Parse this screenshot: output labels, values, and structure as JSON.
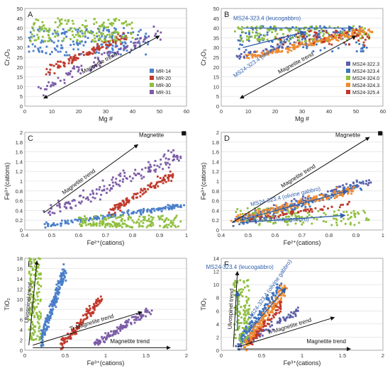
{
  "figure": {
    "background": "#ffffff"
  },
  "colors": {
    "MR-14": "#4a7ec9",
    "MR-20": "#c0392b",
    "MR-30": "#8fbf3f",
    "MR-31": "#7b5aa6",
    "MS24-322.3": "#5b5fa8",
    "MS24-323.4": "#3f74bf",
    "MS24-324.0": "#8fbf3f",
    "MS24-324.3": "#f08a2e",
    "MS24-325.4": "#c0392b",
    "annotation_blue": "#2f5faa",
    "arrow": "#111111"
  },
  "chart_data": [
    {
      "id": "A",
      "type": "scatter",
      "panel_label": "A",
      "xlabel": "Mg #",
      "ylabel": "Cr₂O₃",
      "xlim": [
        0,
        60
      ],
      "ylim": [
        0,
        50
      ],
      "xticks": [
        0,
        10,
        20,
        30,
        40,
        50,
        60
      ],
      "yticks": [
        0,
        5,
        10,
        15,
        20,
        25,
        30,
        35,
        40,
        45,
        50
      ],
      "legend": {
        "placement": "bottom-right",
        "entries": [
          "MR-14",
          "MR-20",
          "MR-30",
          "MR-31"
        ]
      },
      "series": [
        {
          "name": "MR-14",
          "clusters": [
            {
              "n": 190,
              "x": [
                1,
                46
              ],
              "y": [
                26,
                40
              ],
              "shape": "band"
            }
          ]
        },
        {
          "name": "MR-20",
          "clusters": [
            {
              "n": 110,
              "x": [
                8,
                38
              ],
              "y": [
                18,
                36
              ],
              "shape": "diag"
            }
          ]
        },
        {
          "name": "MR-30",
          "clusters": [
            {
              "n": 170,
              "x": [
                2,
                40
              ],
              "y": [
                33,
                45
              ],
              "shape": "band"
            }
          ]
        },
        {
          "name": "MR-31",
          "clusters": [
            {
              "n": 90,
              "x": [
                5,
                50
              ],
              "y": [
                9,
                38
              ],
              "shape": "diag"
            }
          ]
        }
      ],
      "annotations": [
        {
          "text": "Magnetite trend",
          "x": [
            7,
            50
          ],
          "y": [
            4,
            36
          ],
          "type": "arrow-both",
          "label_at": 0.5
        }
      ]
    },
    {
      "id": "B",
      "type": "scatter",
      "panel_label": "B",
      "xlabel": "Mg #",
      "ylabel": "Cr₂O₃",
      "xlim": [
        0,
        60
      ],
      "ylim": [
        0,
        50
      ],
      "xticks": [
        0,
        10,
        20,
        30,
        40,
        50,
        60
      ],
      "yticks": [
        0,
        5,
        10,
        15,
        20,
        25,
        30,
        35,
        40,
        45,
        50
      ],
      "legend": {
        "placement": "bottom-right",
        "entries": [
          "MS24-322.3",
          "MS24-323.4",
          "MS24-324.0",
          "MS24-324.3",
          "MS24-325.4"
        ]
      },
      "series": [
        {
          "name": "MS24-322.3",
          "clusters": [
            {
              "n": 80,
              "x": [
                5,
                52
              ],
              "y": [
                25,
                40
              ],
              "shape": "diag"
            }
          ]
        },
        {
          "name": "MS24-323.4",
          "clusters": [
            {
              "n": 120,
              "x": [
                6,
                54
              ],
              "y": [
                28,
                41
              ],
              "shape": "band"
            }
          ]
        },
        {
          "name": "MS24-324.0",
          "clusters": [
            {
              "n": 150,
              "x": [
                5,
                56
              ],
              "y": [
                33,
                41
              ],
              "shape": "band"
            }
          ]
        },
        {
          "name": "MS24-324.3",
          "clusters": [
            {
              "n": 180,
              "x": [
                10,
                55
              ],
              "y": [
                25,
                39
              ],
              "shape": "diag"
            }
          ]
        },
        {
          "name": "MS24-325.4",
          "clusters": [
            {
              "n": 60,
              "x": [
                20,
                55
              ],
              "y": [
                31,
                39
              ],
              "shape": "band"
            }
          ]
        }
      ],
      "annotations": [
        {
          "text": "Magnetite trend",
          "x": [
            7,
            50
          ],
          "y": [
            4,
            36
          ],
          "type": "arrow-both",
          "label_at": 0.5
        },
        {
          "text": "MS24-323.4 (leucogabbro)",
          "x": [
            8,
            49
          ],
          "y": [
            40,
            40
          ],
          "type": "arrow-blue",
          "label_at": 0.5,
          "label_pos": [
            17,
            44
          ]
        },
        {
          "text": "MS24-323.4 (olivine gabbro)",
          "x": [
            8,
            31
          ],
          "y": [
            30,
            38
          ],
          "type": "arrow-blue",
          "label_at": 0.3,
          "label_pos": [
            16,
            25
          ],
          "rotate": -35
        }
      ]
    },
    {
      "id": "C",
      "type": "scatter",
      "panel_label": "C",
      "xlabel": "Fe²⁺(cations)",
      "ylabel": "Fe³⁺(cations)",
      "xlim": [
        0.4,
        1.0
      ],
      "ylim": [
        0,
        2
      ],
      "xticks": [
        0.4,
        0.5,
        0.6,
        0.7,
        0.8,
        0.9,
        1.0
      ],
      "yticks": [
        0,
        0.2,
        0.4,
        0.6,
        0.8,
        1.0,
        1.2,
        1.4,
        1.6,
        1.8,
        2.0
      ],
      "xticklabels": [
        "0.4",
        "0.5",
        "0.6",
        "0.7",
        "0.8",
        "0.9",
        "1"
      ],
      "yticklabels": [
        "0",
        "0.2",
        "0.4",
        "0.6",
        "0.8",
        "1",
        "1.2",
        "1.4",
        "1.6",
        "1.8",
        "2"
      ],
      "series": [
        {
          "name": "MR-14",
          "clusters": [
            {
              "n": 170,
              "x": [
                0.48,
                0.98
              ],
              "y": [
                0.1,
                0.5
              ],
              "shape": "diag"
            }
          ]
        },
        {
          "name": "MR-20",
          "clusters": [
            {
              "n": 110,
              "x": [
                0.72,
                0.95
              ],
              "y": [
                0.4,
                1.15
              ],
              "shape": "diag"
            }
          ]
        },
        {
          "name": "MR-30",
          "clusters": [
            {
              "n": 180,
              "x": [
                0.6,
                0.98
              ],
              "y": [
                0.05,
                0.3
              ],
              "shape": "band"
            }
          ]
        },
        {
          "name": "MR-31",
          "clusters": [
            {
              "n": 150,
              "x": [
                0.48,
                0.98
              ],
              "y": [
                0.3,
                1.55
              ],
              "shape": "diag"
            }
          ]
        }
      ],
      "annotations": [
        {
          "text": "Magnetite trend",
          "x": [
            0.47,
            0.82
          ],
          "y": [
            0.35,
            1.75
          ],
          "type": "arrow-end",
          "label_at": 0.4
        },
        {
          "text": "Magnetite",
          "x": [
            0.99,
            0.99
          ],
          "y": [
            1.98,
            1.98
          ],
          "type": "marker",
          "label_pos": [
            0.87,
            1.95
          ]
        }
      ]
    },
    {
      "id": "D",
      "type": "scatter",
      "panel_label": "D",
      "xlabel": "Fe²⁺(cations)",
      "ylabel": "Fe³⁺(cations)",
      "xlim": [
        0.4,
        1.0
      ],
      "ylim": [
        0,
        2
      ],
      "xticks": [
        0.4,
        0.5,
        0.6,
        0.7,
        0.8,
        0.9,
        1.0
      ],
      "yticks": [
        0,
        0.2,
        0.4,
        0.6,
        0.8,
        1.0,
        1.2,
        1.4,
        1.6,
        1.8,
        2.0
      ],
      "xticklabels": [
        "0.4",
        "0.5",
        "0.6",
        "0.7",
        "0.8",
        "0.9",
        "1"
      ],
      "yticklabels": [
        "0",
        "0.2",
        "0.4",
        "0.6",
        "0.8",
        "1",
        "1.2",
        "1.4",
        "1.6",
        "1.8",
        "2"
      ],
      "series": [
        {
          "name": "MS24-322.3",
          "clusters": [
            {
              "n": 120,
              "x": [
                0.45,
                0.95
              ],
              "y": [
                0.15,
                1.0
              ],
              "shape": "diag"
            }
          ]
        },
        {
          "name": "MS24-323.4",
          "clusters": [
            {
              "n": 140,
              "x": [
                0.45,
                0.92
              ],
              "y": [
                0.15,
                0.9
              ],
              "shape": "diag"
            }
          ]
        },
        {
          "name": "MS24-324.0",
          "clusters": [
            {
              "n": 140,
              "x": [
                0.45,
                0.95
              ],
              "y": [
                0.1,
                0.45
              ],
              "shape": "band"
            }
          ]
        },
        {
          "name": "MS24-324.3",
          "clusters": [
            {
              "n": 150,
              "x": [
                0.45,
                0.9
              ],
              "y": [
                0.2,
                0.85
              ],
              "shape": "diag"
            }
          ]
        },
        {
          "name": "MS24-325.4",
          "clusters": [
            {
              "n": 60,
              "x": [
                0.5,
                0.9
              ],
              "y": [
                0.2,
                0.55
              ],
              "shape": "diag"
            }
          ]
        }
      ],
      "annotations": [
        {
          "text": "Magnetite trend",
          "x": [
            0.44,
            0.95
          ],
          "y": [
            0.15,
            1.9
          ],
          "type": "arrow-end",
          "label_at": 0.5
        },
        {
          "text": "Magnetite",
          "x": [
            0.99,
            0.99
          ],
          "y": [
            1.98,
            1.98
          ],
          "type": "marker",
          "label_pos": [
            0.87,
            1.95
          ]
        },
        {
          "text": "MS24-323.4 (olivine gabbro)",
          "x": [
            0.47,
            0.87
          ],
          "y": [
            0.2,
            0.8
          ],
          "type": "arrow-blue",
          "label_at": 0.6,
          "label_pos": [
            0.64,
            0.65
          ],
          "rotate": -13
        },
        {
          "text": "MS24-323.4 (leucogabbro)",
          "x": [
            0.47,
            0.86
          ],
          "y": [
            0.15,
            0.3
          ],
          "type": "arrow-blue",
          "label_at": 0.6,
          "label_pos": [
            0.6,
            0.18
          ]
        }
      ]
    },
    {
      "id": "E",
      "type": "scatter",
      "panel_label": "E",
      "xlabel": "Fe³⁺(cations)",
      "ylabel": "TiO₂",
      "xlim": [
        0,
        2
      ],
      "ylim": [
        0,
        18
      ],
      "xticks": [
        0,
        0.5,
        1.0,
        1.5,
        2.0
      ],
      "yticks": [
        0,
        2,
        4,
        6,
        8,
        10,
        12,
        14,
        16,
        18
      ],
      "xticklabels": [
        "0",
        "0.5",
        "1",
        "1.5",
        "2"
      ],
      "series": [
        {
          "name": "MR-14",
          "clusters": [
            {
              "n": 190,
              "x": [
                0.2,
                0.5
              ],
              "y": [
                2,
                16
              ],
              "shape": "diag"
            }
          ]
        },
        {
          "name": "MR-20",
          "clusters": [
            {
              "n": 130,
              "x": [
                0.45,
                0.95
              ],
              "y": [
                1,
                10
              ],
              "shape": "diag"
            }
          ]
        },
        {
          "name": "MR-30",
          "clusters": [
            {
              "n": 150,
              "x": [
                0.05,
                0.2
              ],
              "y": [
                2,
                18
              ],
              "shape": "band-vertical"
            }
          ]
        },
        {
          "name": "MR-31",
          "clusters": [
            {
              "n": 110,
              "x": [
                0.85,
                1.55
              ],
              "y": [
                1,
                8
              ],
              "shape": "diag"
            }
          ]
        }
      ],
      "annotations": [
        {
          "text": "Ulvospinel trend",
          "x": [
            0.05,
            0.15
          ],
          "y": [
            1,
            17.5
          ],
          "type": "arrow-end",
          "label_at": 0.5,
          "rotate": -85
        },
        {
          "text": "Ti-Magnetite trend",
          "x": [
            0.1,
            1.45
          ],
          "y": [
            1,
            7.5
          ],
          "type": "arrow-end",
          "label_at": 0.55
        },
        {
          "text": "Magnetite trend",
          "x": [
            0.1,
            1.8
          ],
          "y": [
            0.5,
            0.5
          ],
          "type": "arrow-end",
          "label_at": 0.7,
          "label_pos": [
            1.3,
            1.4
          ]
        }
      ]
    },
    {
      "id": "F",
      "type": "scatter",
      "panel_label": "F",
      "xlabel": "Fe³⁺(cations)",
      "ylabel": "TiO₂",
      "xlim": [
        0,
        2
      ],
      "ylim": [
        0,
        14
      ],
      "xticks": [
        0,
        0.5,
        1.0,
        1.5,
        2.0
      ],
      "yticks": [
        0,
        2,
        4,
        6,
        8,
        10,
        12,
        14
      ],
      "xticklabels": [
        "0",
        "0.5",
        "1",
        "1.5",
        "2"
      ],
      "series": [
        {
          "name": "MS24-322.3",
          "clusters": [
            {
              "n": 90,
              "x": [
                0.2,
                0.95
              ],
              "y": [
                0.5,
                6
              ],
              "shape": "diag"
            }
          ]
        },
        {
          "name": "MS24-323.4",
          "clusters": [
            {
              "n": 130,
              "x": [
                0.2,
                0.75
              ],
              "y": [
                1,
                10
              ],
              "shape": "diag"
            }
          ]
        },
        {
          "name": "MS24-324.0",
          "clusters": [
            {
              "n": 120,
              "x": [
                0.15,
                0.35
              ],
              "y": [
                1,
                11
              ],
              "shape": "band-vertical"
            }
          ]
        },
        {
          "name": "MS24-324.3",
          "clusters": [
            {
              "n": 170,
              "x": [
                0.3,
                0.8
              ],
              "y": [
                1,
                9.5
              ],
              "shape": "diag"
            }
          ]
        },
        {
          "name": "MS24-325.4",
          "clusters": [
            {
              "n": 60,
              "x": [
                0.35,
                0.75
              ],
              "y": [
                1,
                7
              ],
              "shape": "diag"
            }
          ]
        }
      ],
      "annotations": [
        {
          "text": "Ulvospinel trend",
          "x": [
            0.15,
            0.2
          ],
          "y": [
            0.5,
            12
          ],
          "type": "arrow-end",
          "label_at": 0.5,
          "rotate": -87
        },
        {
          "text": "Ti-Magnetite trend",
          "x": [
            0.2,
            1.4
          ],
          "y": [
            0.5,
            5
          ],
          "type": "arrow-end",
          "label_at": 0.55
        },
        {
          "text": "Magnetite trend",
          "x": [
            0.2,
            1.6
          ],
          "y": [
            0.2,
            0.2
          ],
          "type": "arrow-end",
          "label_at": 0.7,
          "label_pos": [
            1.3,
            1.1
          ]
        },
        {
          "text": "MS24-323.4 (leucogabbro)",
          "x": [
            0.2,
            0.2
          ],
          "y": [
            3,
            9
          ],
          "type": "arrow-blue",
          "label_at": 0.5,
          "label_pos": [
            0.23,
            12.4
          ]
        },
        {
          "text": "MS24-323.4 (olivine gabbro)",
          "x": [
            0.35,
            0.8
          ],
          "y": [
            3,
            9.5
          ],
          "type": "arrow-blue",
          "label_at": 0.5,
          "label_pos": [
            0.62,
            9.1
          ],
          "rotate": -55
        }
      ]
    }
  ]
}
